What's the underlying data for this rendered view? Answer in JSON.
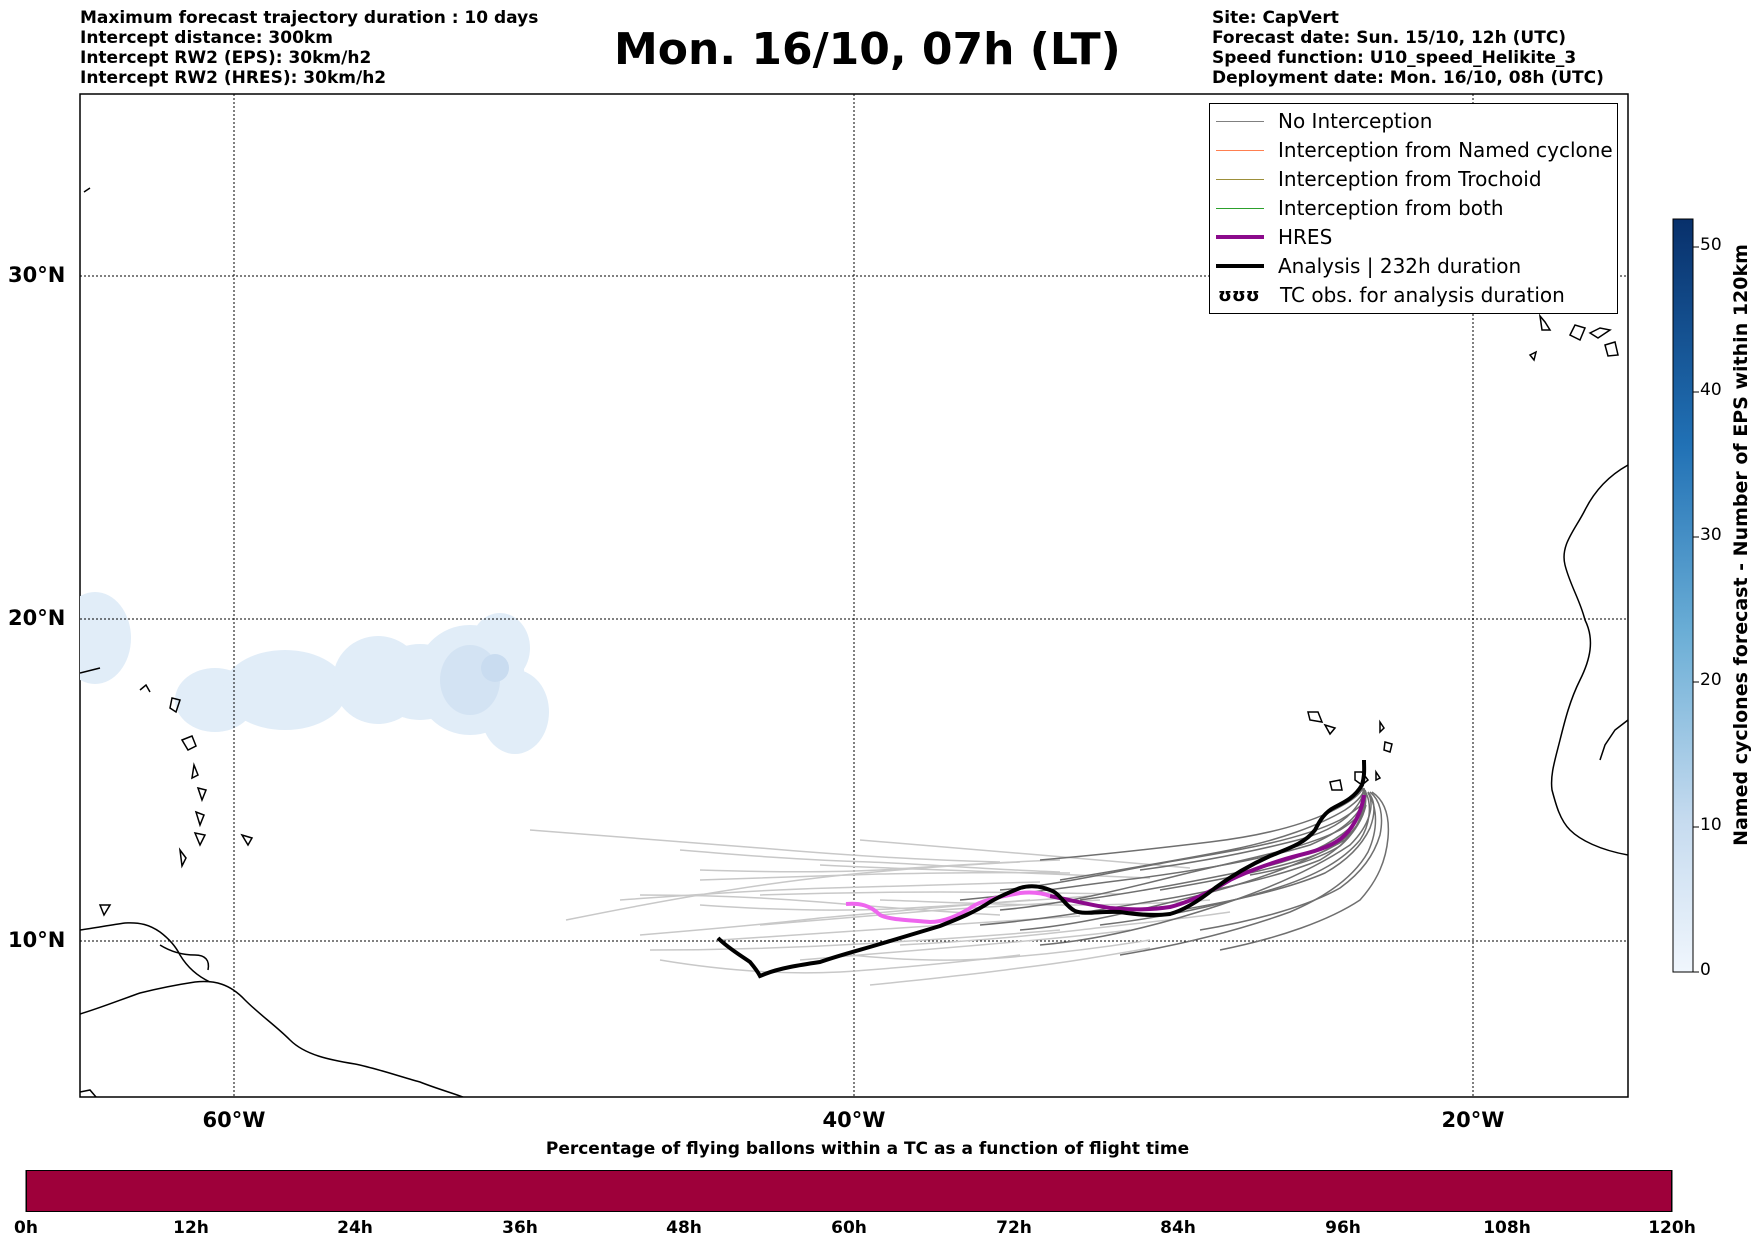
{
  "title": "Mon. 16/10, 07h (LT)",
  "info_left": [
    "Maximum forecast trajectory duration : 10 days",
    "Intercept distance: 300km",
    "Intercept RW2 (EPS):  30km/h2",
    "Intercept RW2 (HRES): 30km/h2"
  ],
  "info_right": [
    "Site: CapVert",
    "Forecast date: Sun. 15/10, 12h (UTC)",
    "Speed function: U10_speed_Helikite_3",
    "Deployment date: Mon. 16/10, 08h (UTC)"
  ],
  "map": {
    "lon_ticks": [
      "60°W",
      "40°W",
      "20°W"
    ],
    "lat_ticks": [
      "30°N",
      "20°N",
      "10°N"
    ]
  },
  "legend": [
    {
      "label": "No Interception",
      "color": "#808080",
      "style": "thin"
    },
    {
      "label": "Interception from Named cyclone",
      "color": "#ff7f50",
      "style": "thin"
    },
    {
      "label": "Interception from Trochoid",
      "color": "#9c8f3a",
      "style": "thin"
    },
    {
      "label": "Interception from both",
      "color": "#2ca02c",
      "style": "thin"
    },
    {
      "label": "HRES",
      "color": "#8b0a8b",
      "style": "thick"
    },
    {
      "label": "Analysis | 232h duration",
      "color": "#000000",
      "style": "thick"
    },
    {
      "label": "TC obs. for analysis duration",
      "color": "#000000",
      "style": "symbol",
      "symbol": "ʊʊʊ"
    }
  ],
  "colorbar": {
    "label": "Named cyclones forecast - Number of EPS within 120km",
    "ticks": [
      "0",
      "10",
      "20",
      "30",
      "40",
      "50"
    ],
    "color_low": "#f0f6fd",
    "color_high": "#08306b"
  },
  "bottom_bar": {
    "title": "Percentage of flying ballons within a TC as a function of flight time",
    "ticks": [
      "0h",
      "12h",
      "24h",
      "36h",
      "48h",
      "60h",
      "72h",
      "84h",
      "96h",
      "108h",
      "120h"
    ],
    "color": "#9e003a"
  }
}
